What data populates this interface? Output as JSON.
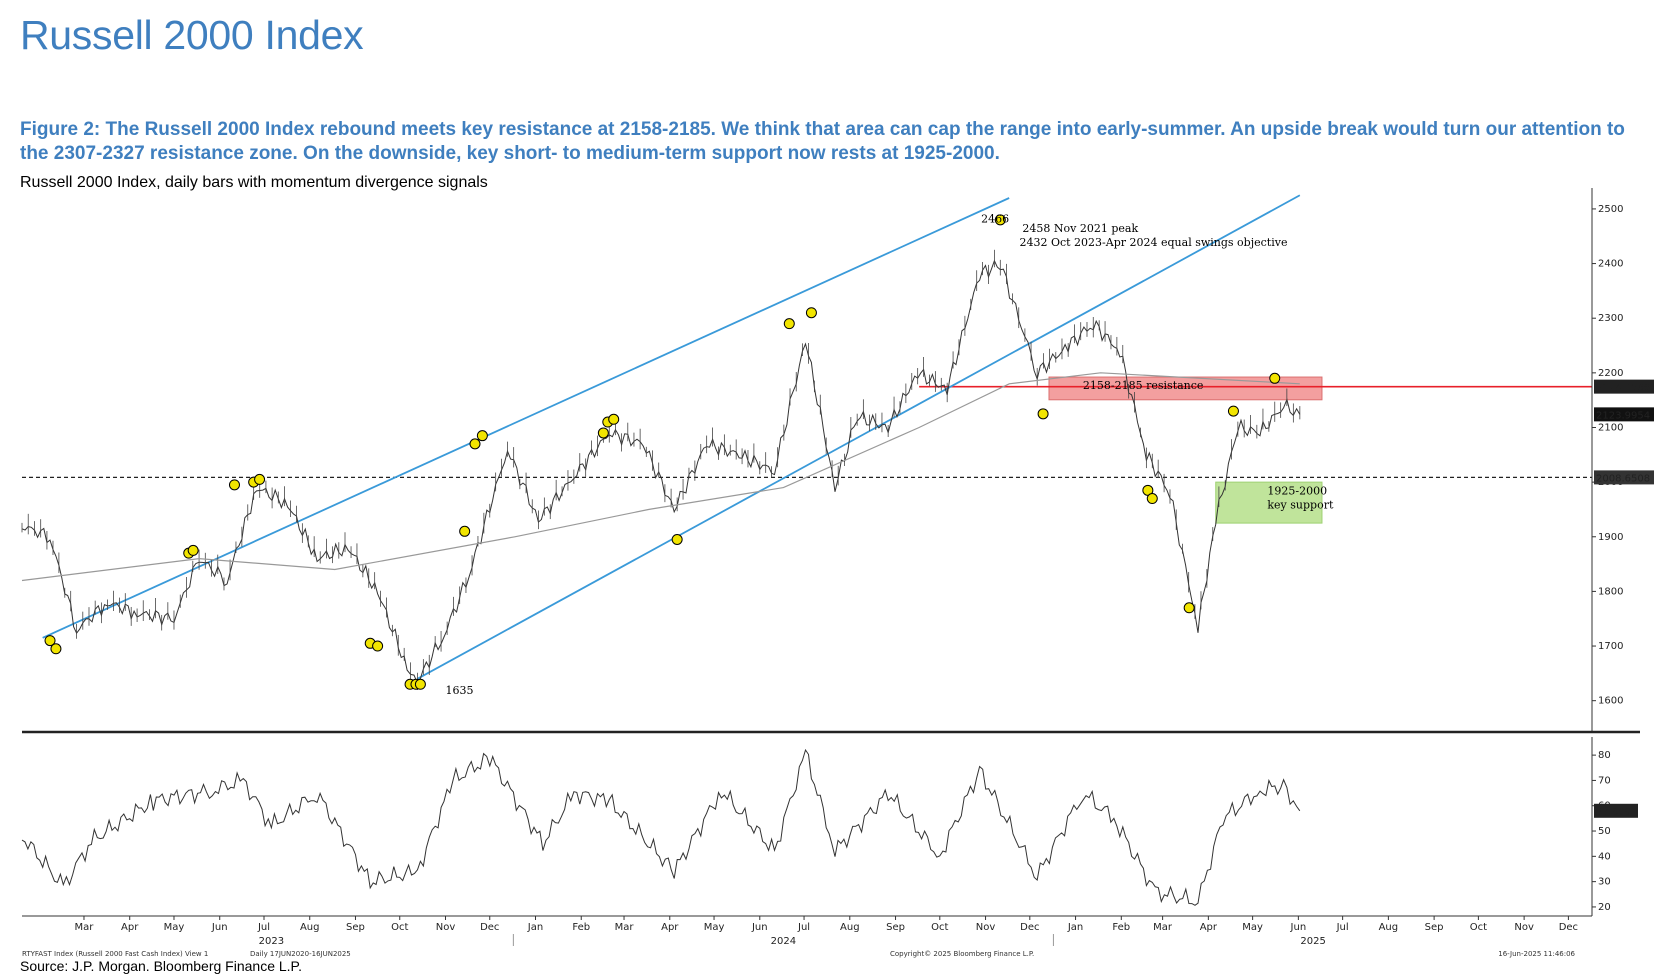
{
  "header": {
    "title": "Russell 2000 Index",
    "caption": "Figure 2: The Russell 2000 Index rebound meets key resistance at 2158-2185. We think that area can cap the range into early-summer. An upside break would turn our attention to the 2307-2327 resistance zone. On the downside, key short- to medium-term support now rests at 1925-2000.",
    "subtitle": "Russell 2000 Index, daily bars with momentum divergence signals"
  },
  "source": "Source: J.P. Morgan. Bloomberg Finance L.P.",
  "footer": {
    "left": "RTYFAST Index (Russell 2000 Fast Cash Index) View 1",
    "dates": "Daily 17JUN2020-16JUN2025",
    "copyright": "Copyright© 2025 Bloomberg Finance L.P.",
    "timestamp": "16-Jun-2025 11:46:06"
  },
  "colors": {
    "title": "#3f7fbf",
    "channel": "#3a9ad9",
    "resistance_line": "#e8202a",
    "resistance_zone": "#f08080",
    "support_zone": "#b6e08a",
    "signal_marker": "#f2e500"
  },
  "chart_data": [
    {
      "type": "line",
      "title": "",
      "y_axis": {
        "min": 1550,
        "max": 2520,
        "ticks": [
          1600,
          1700,
          1800,
          1900,
          2000,
          2100,
          2200,
          2300,
          2400,
          2500
        ],
        "side": "right"
      },
      "x_axis": {
        "months": [
          "Mar",
          "Apr",
          "May",
          "Jun",
          "Jul",
          "Aug",
          "Sep",
          "Oct",
          "Nov",
          "Dec",
          "Jan",
          "Feb",
          "Mar",
          "Apr",
          "May",
          "Jun",
          "Jul",
          "Aug",
          "Sep",
          "Oct",
          "Nov",
          "Dec",
          "Jan",
          "Feb",
          "Mar",
          "Apr",
          "May",
          "Jun",
          "Jul",
          "Aug",
          "Sep",
          "Oct",
          "Nov",
          "Dec"
        ],
        "years": [
          "2023",
          "2024",
          "2025"
        ]
      },
      "series": [
        {
          "x": [
            "2023-02-01",
            "2023-02-20",
            "2023-03-10",
            "2023-03-31",
            "2023-04-20",
            "2023-05-15",
            "2023-06-01",
            "2023-06-20",
            "2023-07-10",
            "2023-07-31",
            "2023-08-20",
            "2023-09-10",
            "2023-09-30",
            "2023-10-20",
            "2023-10-27",
            "2023-11-14",
            "2023-12-01",
            "2023-12-27",
            "2024-01-17",
            "2024-02-10",
            "2024-03-05",
            "2024-03-28",
            "2024-04-18",
            "2024-05-10",
            "2024-06-01",
            "2024-06-25",
            "2024-07-16",
            "2024-08-05",
            "2024-08-20",
            "2024-09-10",
            "2024-09-30",
            "2024-10-20",
            "2024-11-11",
            "2024-11-25",
            "2024-12-20",
            "2025-01-10",
            "2025-01-27",
            "2025-02-14",
            "2025-03-04",
            "2025-03-20",
            "2025-04-08",
            "2025-04-20",
            "2025-05-05",
            "2025-05-20",
            "2025-06-05",
            "2025-06-16"
          ],
          "y": [
            1920,
            1900,
            1730,
            1780,
            1760,
            1750,
            1860,
            1820,
            1990,
            1960,
            1860,
            1880,
            1800,
            1660,
            1635,
            1720,
            1830,
            2060,
            1930,
            2010,
            2090,
            2070,
            1950,
            2070,
            2050,
            2020,
            2260,
            1990,
            2120,
            2100,
            2200,
            2170,
            2380,
            2400,
            2200,
            2250,
            2290,
            2240,
            2050,
            1980,
            1733,
            1930,
            2100,
            2090,
            2140,
            2124
          ]
        },
        {
          "name": "200-day MA",
          "x": [
            "2023-02-01",
            "2023-06-01",
            "2023-09-01",
            "2024-01-01",
            "2024-04-01",
            "2024-07-01",
            "2024-10-01",
            "2024-12-01",
            "2025-02-01",
            "2025-06-16"
          ],
          "y": [
            1820,
            1860,
            1840,
            1900,
            1950,
            1990,
            2100,
            2180,
            2200,
            2180
          ]
        }
      ],
      "channels": [
        {
          "label": "upper channel",
          "from": [
            "2023-02-15",
            1715
          ],
          "to": [
            "2024-12-01",
            2520
          ]
        },
        {
          "label": "lower channel",
          "from": [
            "2023-10-27",
            1640
          ],
          "to": [
            "2025-06-16",
            2525
          ]
        }
      ],
      "reference_levels": [
        {
          "value": 2008.6508,
          "style": "dashed"
        },
        {
          "value": 2174.7566,
          "style": "red"
        }
      ],
      "zones": [
        {
          "label": "2158-2185 resistance",
          "low": 2158,
          "high": 2185
        },
        {
          "label": "1925-2000 key support",
          "low": 1925,
          "high": 2000
        }
      ],
      "annotations": [
        {
          "text": "2466"
        },
        {
          "text": "2458 Nov 2021 peak"
        },
        {
          "text": "2432 Oct 2023-Apr 2024 equal swings objective"
        },
        {
          "text": "1635"
        },
        {
          "text": "2158-2185 resistance"
        },
        {
          "text": "1925-2000"
        },
        {
          "text": "key support"
        }
      ],
      "last_value_labels": [
        "2174.7566",
        "2123.9954",
        "2008.6508"
      ]
    },
    {
      "type": "line",
      "title": "",
      "y_axis": {
        "min": 18,
        "max": 84,
        "ticks": [
          20,
          30,
          40,
          50,
          60,
          70,
          80
        ],
        "side": "right"
      },
      "series": [
        {
          "x": [
            "2023-02-01",
            "2023-03-01",
            "2023-03-20",
            "2023-05-01",
            "2023-06-10",
            "2023-07-01",
            "2023-07-20",
            "2023-08-20",
            "2023-09-25",
            "2023-10-27",
            "2023-11-20",
            "2023-12-15",
            "2024-01-20",
            "2024-02-10",
            "2024-03-05",
            "2024-04-18",
            "2024-05-20",
            "2024-06-25",
            "2024-07-16",
            "2024-08-05",
            "2024-09-10",
            "2024-10-15",
            "2024-11-11",
            "2024-12-20",
            "2025-01-20",
            "2025-02-10",
            "2025-03-10",
            "2025-04-08",
            "2025-04-25",
            "2025-05-20",
            "2025-06-05",
            "2025-06-16"
          ],
          "y": [
            48,
            28,
            46,
            62,
            66,
            70,
            52,
            65,
            30,
            34,
            70,
            79,
            45,
            65,
            62,
            34,
            66,
            42,
            81,
            42,
            65,
            40,
            74,
            32,
            65,
            55,
            26,
            22,
            55,
            66,
            68,
            58
          ]
        }
      ],
      "last_value_label": "57.8091"
    }
  ]
}
